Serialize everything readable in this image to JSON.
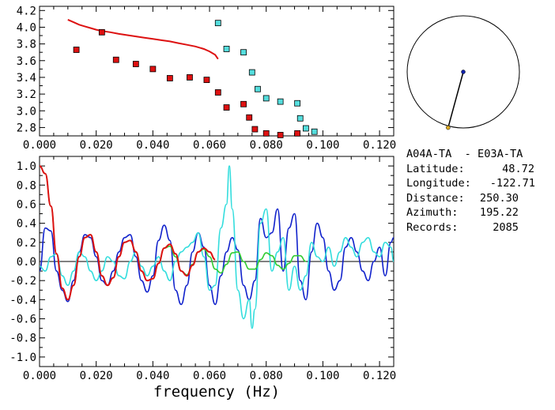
{
  "chart_data": [
    {
      "type": "scatter",
      "xlim": [
        0.0,
        0.125
      ],
      "ylim": [
        2.7,
        4.25
      ],
      "x_ticks": [
        "0.000",
        "0.020",
        "0.040",
        "0.060",
        "0.080",
        "0.100",
        "0.120"
      ],
      "y_ticks": [
        "2.8",
        "3.0",
        "3.2",
        "3.4",
        "3.6",
        "3.8",
        "4.0",
        "4.2"
      ],
      "series": [
        {
          "kind": "line",
          "color": "#dd1111",
          "x": [
            0.01,
            0.012,
            0.014,
            0.016,
            0.018,
            0.02,
            0.022,
            0.025,
            0.028,
            0.031,
            0.034,
            0.037,
            0.04,
            0.043,
            0.046,
            0.049,
            0.052,
            0.055,
            0.058,
            0.06,
            0.062,
            0.063
          ],
          "y": [
            4.09,
            4.06,
            4.03,
            4.01,
            3.99,
            3.97,
            3.955,
            3.94,
            3.92,
            3.905,
            3.89,
            3.875,
            3.86,
            3.845,
            3.83,
            3.81,
            3.79,
            3.77,
            3.74,
            3.71,
            3.67,
            3.62
          ]
        },
        {
          "kind": "markers",
          "color": "#dd1111",
          "x": [
            0.013,
            0.022,
            0.027,
            0.034,
            0.04,
            0.046,
            0.053,
            0.059,
            0.063,
            0.066,
            0.072,
            0.074,
            0.076,
            0.08,
            0.085,
            0.091
          ],
          "y": [
            3.73,
            3.94,
            3.61,
            3.56,
            3.5,
            3.39,
            3.4,
            3.37,
            3.22,
            3.04,
            3.08,
            2.92,
            2.78,
            2.73,
            2.71,
            2.73
          ]
        },
        {
          "kind": "markers",
          "color": "#55dddd",
          "x": [
            0.063,
            0.066,
            0.072,
            0.075,
            0.077,
            0.08,
            0.085,
            0.091,
            0.092,
            0.094,
            0.097
          ],
          "y": [
            4.05,
            3.74,
            3.7,
            3.46,
            3.26,
            3.15,
            3.11,
            3.09,
            2.91,
            2.79,
            2.75
          ]
        }
      ]
    },
    {
      "type": "line",
      "xlim": [
        0.0,
        0.125
      ],
      "ylim": [
        -1.1,
        1.1
      ],
      "x_ticks": [
        "0.000",
        "0.020",
        "0.040",
        "0.060",
        "0.080",
        "0.100",
        "0.120"
      ],
      "y_ticks": [
        "-1.0",
        "-0.8",
        "-0.6",
        "-0.4",
        "-0.2",
        "0.0",
        "0.2",
        "0.4",
        "0.6",
        "0.8",
        "1.0"
      ],
      "xlabel": "frequency (Hz)",
      "zero_line": true,
      "series": [
        {
          "color": "#1122cc",
          "x": [
            0.0,
            0.002,
            0.004,
            0.006,
            0.008,
            0.01,
            0.012,
            0.014,
            0.016,
            0.018,
            0.02,
            0.022,
            0.024,
            0.026,
            0.028,
            0.03,
            0.032,
            0.034,
            0.036,
            0.038,
            0.04,
            0.042,
            0.044,
            0.046,
            0.048,
            0.05,
            0.052,
            0.054,
            0.056,
            0.058,
            0.06,
            0.062,
            0.064,
            0.066,
            0.068,
            0.07,
            0.072,
            0.074,
            0.076,
            0.078,
            0.08,
            0.082,
            0.084,
            0.086,
            0.088,
            0.09,
            0.092,
            0.094,
            0.096,
            0.098,
            0.1,
            0.102,
            0.104,
            0.106,
            0.108,
            0.11,
            0.112,
            0.114,
            0.116,
            0.118,
            0.12,
            0.122,
            0.124,
            0.125
          ],
          "y": [
            -0.1,
            0.35,
            0.32,
            -0.1,
            -0.3,
            -0.42,
            -0.2,
            0.1,
            0.28,
            0.25,
            0.05,
            -0.2,
            -0.25,
            -0.1,
            0.1,
            0.25,
            0.28,
            0.05,
            -0.2,
            -0.32,
            -0.15,
            0.22,
            0.38,
            0.22,
            -0.3,
            -0.45,
            -0.25,
            0.1,
            0.3,
            0.15,
            -0.25,
            -0.45,
            -0.15,
            0.1,
            0.25,
            0.12,
            -0.25,
            -0.4,
            -0.2,
            0.45,
            0.25,
            0.3,
            0.55,
            -0.1,
            0.35,
            0.5,
            -0.2,
            -0.4,
            0.1,
            0.4,
            0.25,
            -0.1,
            -0.3,
            -0.2,
            0.15,
            0.25,
            0.1,
            -0.1,
            -0.2,
            0.0,
            0.15,
            -0.15,
            0.2,
            0.25
          ]
        },
        {
          "color": "#dd1111",
          "x": [
            0.0,
            0.002,
            0.004,
            0.006,
            0.008,
            0.01,
            0.012,
            0.014,
            0.016,
            0.018,
            0.02,
            0.022,
            0.024,
            0.026,
            0.028,
            0.03,
            0.032,
            0.034,
            0.036,
            0.038,
            0.04,
            0.042,
            0.044,
            0.046,
            0.048,
            0.05,
            0.052,
            0.054,
            0.056,
            0.058,
            0.06,
            0.062
          ],
          "y": [
            1.0,
            0.92,
            0.58,
            0.08,
            -0.28,
            -0.4,
            -0.25,
            0.05,
            0.25,
            0.28,
            0.1,
            -0.15,
            -0.25,
            -0.17,
            0.05,
            0.2,
            0.22,
            0.1,
            -0.1,
            -0.2,
            -0.18,
            -0.02,
            0.14,
            0.18,
            0.08,
            -0.1,
            -0.15,
            -0.04,
            0.1,
            0.14,
            0.1,
            0.02
          ]
        },
        {
          "color": "#33cc33",
          "x": [
            0.0,
            0.002,
            0.004,
            0.006,
            0.008,
            0.01,
            0.012,
            0.014,
            0.016,
            0.018,
            0.02,
            0.022,
            0.024,
            0.026,
            0.028,
            0.03,
            0.032,
            0.034,
            0.036,
            0.038,
            0.04,
            0.042,
            0.044,
            0.046,
            0.048,
            0.05,
            0.052,
            0.054,
            0.056,
            0.058,
            0.06,
            0.062,
            0.064,
            0.066,
            0.068,
            0.07,
            0.072,
            0.074,
            0.076,
            0.078,
            0.08,
            0.082,
            0.084,
            0.086,
            0.088,
            0.09,
            0.092,
            0.094
          ],
          "y": [
            1.0,
            0.92,
            0.58,
            0.08,
            -0.28,
            -0.4,
            -0.25,
            0.05,
            0.25,
            0.28,
            0.1,
            -0.15,
            -0.25,
            -0.17,
            0.05,
            0.2,
            0.22,
            0.1,
            -0.1,
            -0.2,
            -0.18,
            -0.02,
            0.14,
            0.16,
            0.05,
            -0.1,
            -0.14,
            -0.03,
            0.1,
            0.13,
            0.05,
            -0.08,
            -0.12,
            -0.03,
            0.09,
            0.1,
            0.0,
            -0.08,
            -0.08,
            0.02,
            0.09,
            0.06,
            -0.04,
            -0.08,
            -0.02,
            0.06,
            0.06,
            0.0
          ]
        },
        {
          "color": "#33dddd",
          "x": [
            0.0,
            0.002,
            0.004,
            0.006,
            0.008,
            0.01,
            0.012,
            0.014,
            0.016,
            0.018,
            0.02,
            0.022,
            0.024,
            0.026,
            0.028,
            0.03,
            0.032,
            0.034,
            0.036,
            0.038,
            0.04,
            0.042,
            0.044,
            0.046,
            0.048,
            0.05,
            0.052,
            0.054,
            0.056,
            0.058,
            0.06,
            0.062,
            0.064,
            0.066,
            0.067,
            0.068,
            0.07,
            0.072,
            0.074,
            0.075,
            0.076,
            0.078,
            0.08,
            0.082,
            0.084,
            0.086,
            0.088,
            0.09,
            0.092,
            0.094,
            0.096,
            0.098,
            0.1,
            0.102,
            0.104,
            0.106,
            0.108,
            0.11,
            0.112,
            0.114,
            0.116,
            0.118,
            0.12,
            0.122,
            0.124,
            0.125
          ],
          "y": [
            -0.05,
            -0.1,
            0.05,
            0.08,
            -0.15,
            -0.25,
            -0.1,
            0.1,
            0.05,
            -0.1,
            -0.2,
            -0.1,
            0.05,
            0.0,
            -0.15,
            -0.18,
            0.0,
            0.1,
            -0.05,
            -0.15,
            -0.05,
            0.05,
            -0.1,
            -0.2,
            0.0,
            0.1,
            0.15,
            0.2,
            0.3,
            0.05,
            -0.3,
            -0.25,
            0.35,
            0.6,
            1.0,
            0.55,
            -0.3,
            -0.6,
            -0.4,
            -0.7,
            -0.5,
            0.4,
            0.55,
            -0.1,
            0.1,
            0.25,
            -0.3,
            -0.05,
            -0.3,
            -0.15,
            0.2,
            0.05,
            0.0,
            0.15,
            -0.05,
            0.1,
            0.25,
            0.15,
            0.05,
            0.2,
            0.25,
            0.1,
            0.05,
            0.2,
            0.15,
            0.0
          ]
        }
      ]
    }
  ],
  "station_pair": "A04A-TA  - E03A-TA",
  "info": [
    {
      "label": "Latitude:",
      "value": "48.72"
    },
    {
      "label": "Longitude:",
      "value": "-122.71"
    },
    {
      "label": "Distance:",
      "value": "250.30"
    },
    {
      "label": "Azimuth:",
      "value": "195.22"
    },
    {
      "label": "Records:",
      "value": "2085"
    }
  ],
  "azimuth_dial": {
    "azimuth_deg": 195.22,
    "pointer_length": 0.92
  }
}
